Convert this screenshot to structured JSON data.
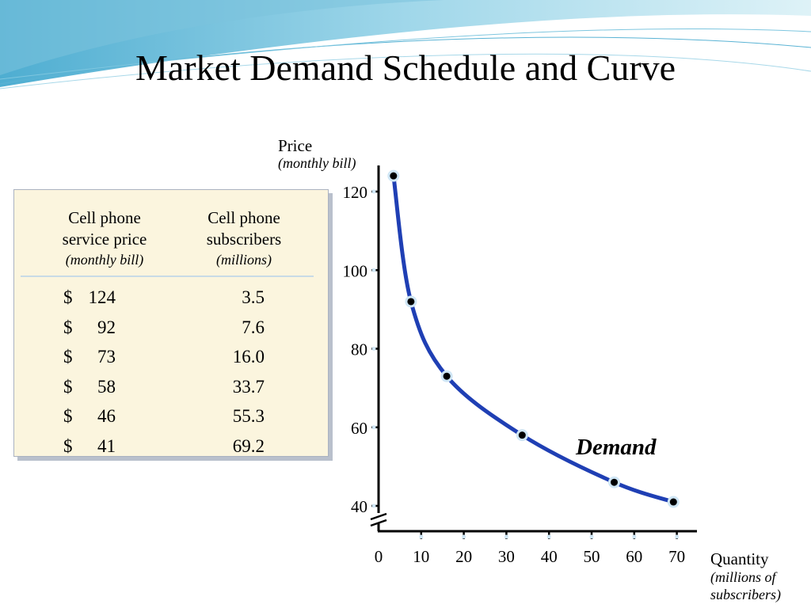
{
  "slide": {
    "title": "Market Demand Schedule and Curve"
  },
  "table": {
    "col1_head": [
      "Cell phone",
      "service price"
    ],
    "col1_sub": "(monthly bill)",
    "col2_head": [
      "Cell phone",
      "subscribers"
    ],
    "col2_sub": "(millions)",
    "currency_symbol": "$",
    "rows": [
      {
        "price": "124",
        "subscribers": "3.5"
      },
      {
        "price": "92",
        "subscribers": "7.6"
      },
      {
        "price": "73",
        "subscribers": "16.0"
      },
      {
        "price": "58",
        "subscribers": "33.7"
      },
      {
        "price": "46",
        "subscribers": "55.3"
      },
      {
        "price": "41",
        "subscribers": "69.2"
      }
    ]
  },
  "chart_data": {
    "type": "line",
    "title": "",
    "ylabel": "Price",
    "ylabel_sub": "(monthly bill)",
    "xlabel": "Quantity",
    "xlabel_sub": [
      "(millions of",
      "subscribers)"
    ],
    "x_ticks": [
      "0",
      "10",
      "20",
      "30",
      "40",
      "50",
      "60",
      "70"
    ],
    "y_ticks": [
      "40",
      "60",
      "80",
      "100",
      "120"
    ],
    "xlim": [
      0,
      70
    ],
    "ylim": [
      40,
      120
    ],
    "y_axis_break": true,
    "series": [
      {
        "name": "Demand",
        "color": "#1f3fb4",
        "points": [
          {
            "x": 3.5,
            "y": 124
          },
          {
            "x": 7.6,
            "y": 92
          },
          {
            "x": 16.0,
            "y": 73
          },
          {
            "x": 33.7,
            "y": 58
          },
          {
            "x": 55.3,
            "y": 46
          },
          {
            "x": 69.2,
            "y": 41
          }
        ]
      }
    ],
    "point_marker_color": "#000000",
    "point_halo_color": "#cfe6f5"
  }
}
